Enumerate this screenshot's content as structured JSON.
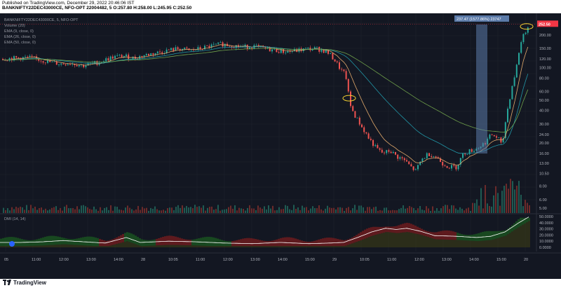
{
  "header": {
    "published": "Published on TradingView.com, December 29, 2022 20:46:06 IST",
    "symbol_line": "BANKNIFTY22DEC43000CE, NFO-OPT 22004482, 5 O:257.80 H:258.00 L:245.95 C:252.50"
  },
  "legend": {
    "symbol": "BANKNIFTY22DEC43000CE, 5, NFO-OPT",
    "volume": "Volume (20)",
    "ema9": "EMA (9, close, 0)",
    "ema26": "EMA (26, close, 0)",
    "ema50": "EMA (50, close, 0)"
  },
  "measure_label": "237.47 (1577.86%) 23747",
  "price_badge": "252.50",
  "dmi_label": "DMI (14, 14)",
  "brand": "TradingView",
  "colors": {
    "bg": "#131722",
    "up": "#26a69a",
    "down": "#ef5350",
    "ema9": "#e0a86a",
    "ema26": "#2196a6",
    "ema50": "#6fa04a",
    "badge": "#f23645",
    "measure": "#5b7aa8"
  },
  "chart_data": {
    "type": "line",
    "price_axis": {
      "scale": "log",
      "ticks": [
        "200.00",
        "150.00",
        "120.00",
        "100.00",
        "80.00",
        "60.00",
        "50.00",
        "40.00",
        "30.00",
        "24.00",
        "20.00",
        "16.00",
        "13.00",
        "10.50",
        "8.00",
        "6.00",
        "5.00"
      ]
    },
    "time_axis": [
      "05",
      "11:00",
      "12:00",
      "13:00",
      "14:00",
      "28",
      "10:05",
      "11:00",
      "12:00",
      "13:00",
      "14:00",
      "15:00",
      "29",
      "10:05",
      "11:00",
      "12:00",
      "13:00",
      "14:00",
      "15:00",
      "20"
    ],
    "dmi_axis": [
      "50.0000",
      "40.0000",
      "30.0000",
      "20.0000",
      "10.0000",
      "0.0000"
    ],
    "series": [
      {
        "name": "EMA (9, close, 0)"
      },
      {
        "name": "EMA (26, close, 0)"
      },
      {
        "name": "EMA (50, close, 0)"
      },
      {
        "name": "Volume (20)"
      },
      {
        "name": "DMI (14, 14)"
      }
    ],
    "price_segments": [
      [
        0,
        120
      ],
      [
        20,
        122
      ],
      [
        40,
        124
      ],
      [
        55,
        118
      ],
      [
        70,
        112
      ],
      [
        85,
        108
      ],
      [
        100,
        110
      ],
      [
        118,
        104
      ],
      [
        140,
        112
      ],
      [
        160,
        125
      ],
      [
        175,
        128
      ],
      [
        190,
        122
      ],
      [
        205,
        130
      ],
      [
        225,
        138
      ],
      [
        240,
        145
      ],
      [
        255,
        150
      ],
      [
        270,
        143
      ],
      [
        285,
        150
      ],
      [
        300,
        158
      ],
      [
        315,
        165
      ],
      [
        330,
        160
      ],
      [
        345,
        155
      ],
      [
        360,
        158
      ],
      [
        375,
        150
      ],
      [
        390,
        145
      ],
      [
        405,
        140
      ],
      [
        420,
        143
      ],
      [
        435,
        148
      ],
      [
        450,
        150
      ],
      [
        465,
        140
      ],
      [
        475,
        120
      ],
      [
        485,
        95
      ],
      [
        492,
        85
      ],
      [
        495,
        62
      ],
      [
        498,
        45
      ],
      [
        505,
        36
      ],
      [
        515,
        28
      ],
      [
        525,
        22
      ],
      [
        535,
        18
      ],
      [
        545,
        16
      ],
      [
        555,
        17
      ],
      [
        565,
        15
      ],
      [
        575,
        14
      ],
      [
        585,
        12
      ],
      [
        592,
        11
      ],
      [
        600,
        14
      ],
      [
        610,
        16
      ],
      [
        620,
        15
      ],
      [
        630,
        13
      ],
      [
        640,
        12
      ],
      [
        650,
        12
      ],
      [
        655,
        14
      ],
      [
        660,
        16
      ],
      [
        670,
        17
      ],
      [
        680,
        18
      ],
      [
        690,
        20
      ],
      [
        700,
        24
      ],
      [
        710,
        22
      ],
      [
        715,
        18
      ],
      [
        720,
        32
      ],
      [
        725,
        48
      ],
      [
        730,
        70
      ],
      [
        735,
        95
      ],
      [
        740,
        150
      ],
      [
        745,
        200
      ],
      [
        750,
        225
      ],
      [
        754,
        250
      ]
    ],
    "dmi_segments": [
      [
        0,
        8
      ],
      [
        30,
        8
      ],
      [
        60,
        9
      ],
      [
        90,
        11
      ],
      [
        120,
        9
      ],
      [
        150,
        7
      ],
      [
        180,
        16
      ],
      [
        200,
        8
      ],
      [
        240,
        10
      ],
      [
        280,
        9
      ],
      [
        320,
        7
      ],
      [
        360,
        6
      ],
      [
        400,
        8
      ],
      [
        440,
        6
      ],
      [
        470,
        7
      ],
      [
        490,
        8
      ],
      [
        510,
        16
      ],
      [
        530,
        25
      ],
      [
        550,
        31
      ],
      [
        565,
        29
      ],
      [
        580,
        31
      ],
      [
        600,
        26
      ],
      [
        620,
        19
      ],
      [
        650,
        18
      ],
      [
        680,
        16
      ],
      [
        700,
        18
      ],
      [
        720,
        25
      ],
      [
        740,
        40
      ],
      [
        755,
        50
      ]
    ],
    "measure": {
      "start_x": 683,
      "end_x": 695,
      "label": "237.47 (1577.86%) 23747"
    }
  }
}
